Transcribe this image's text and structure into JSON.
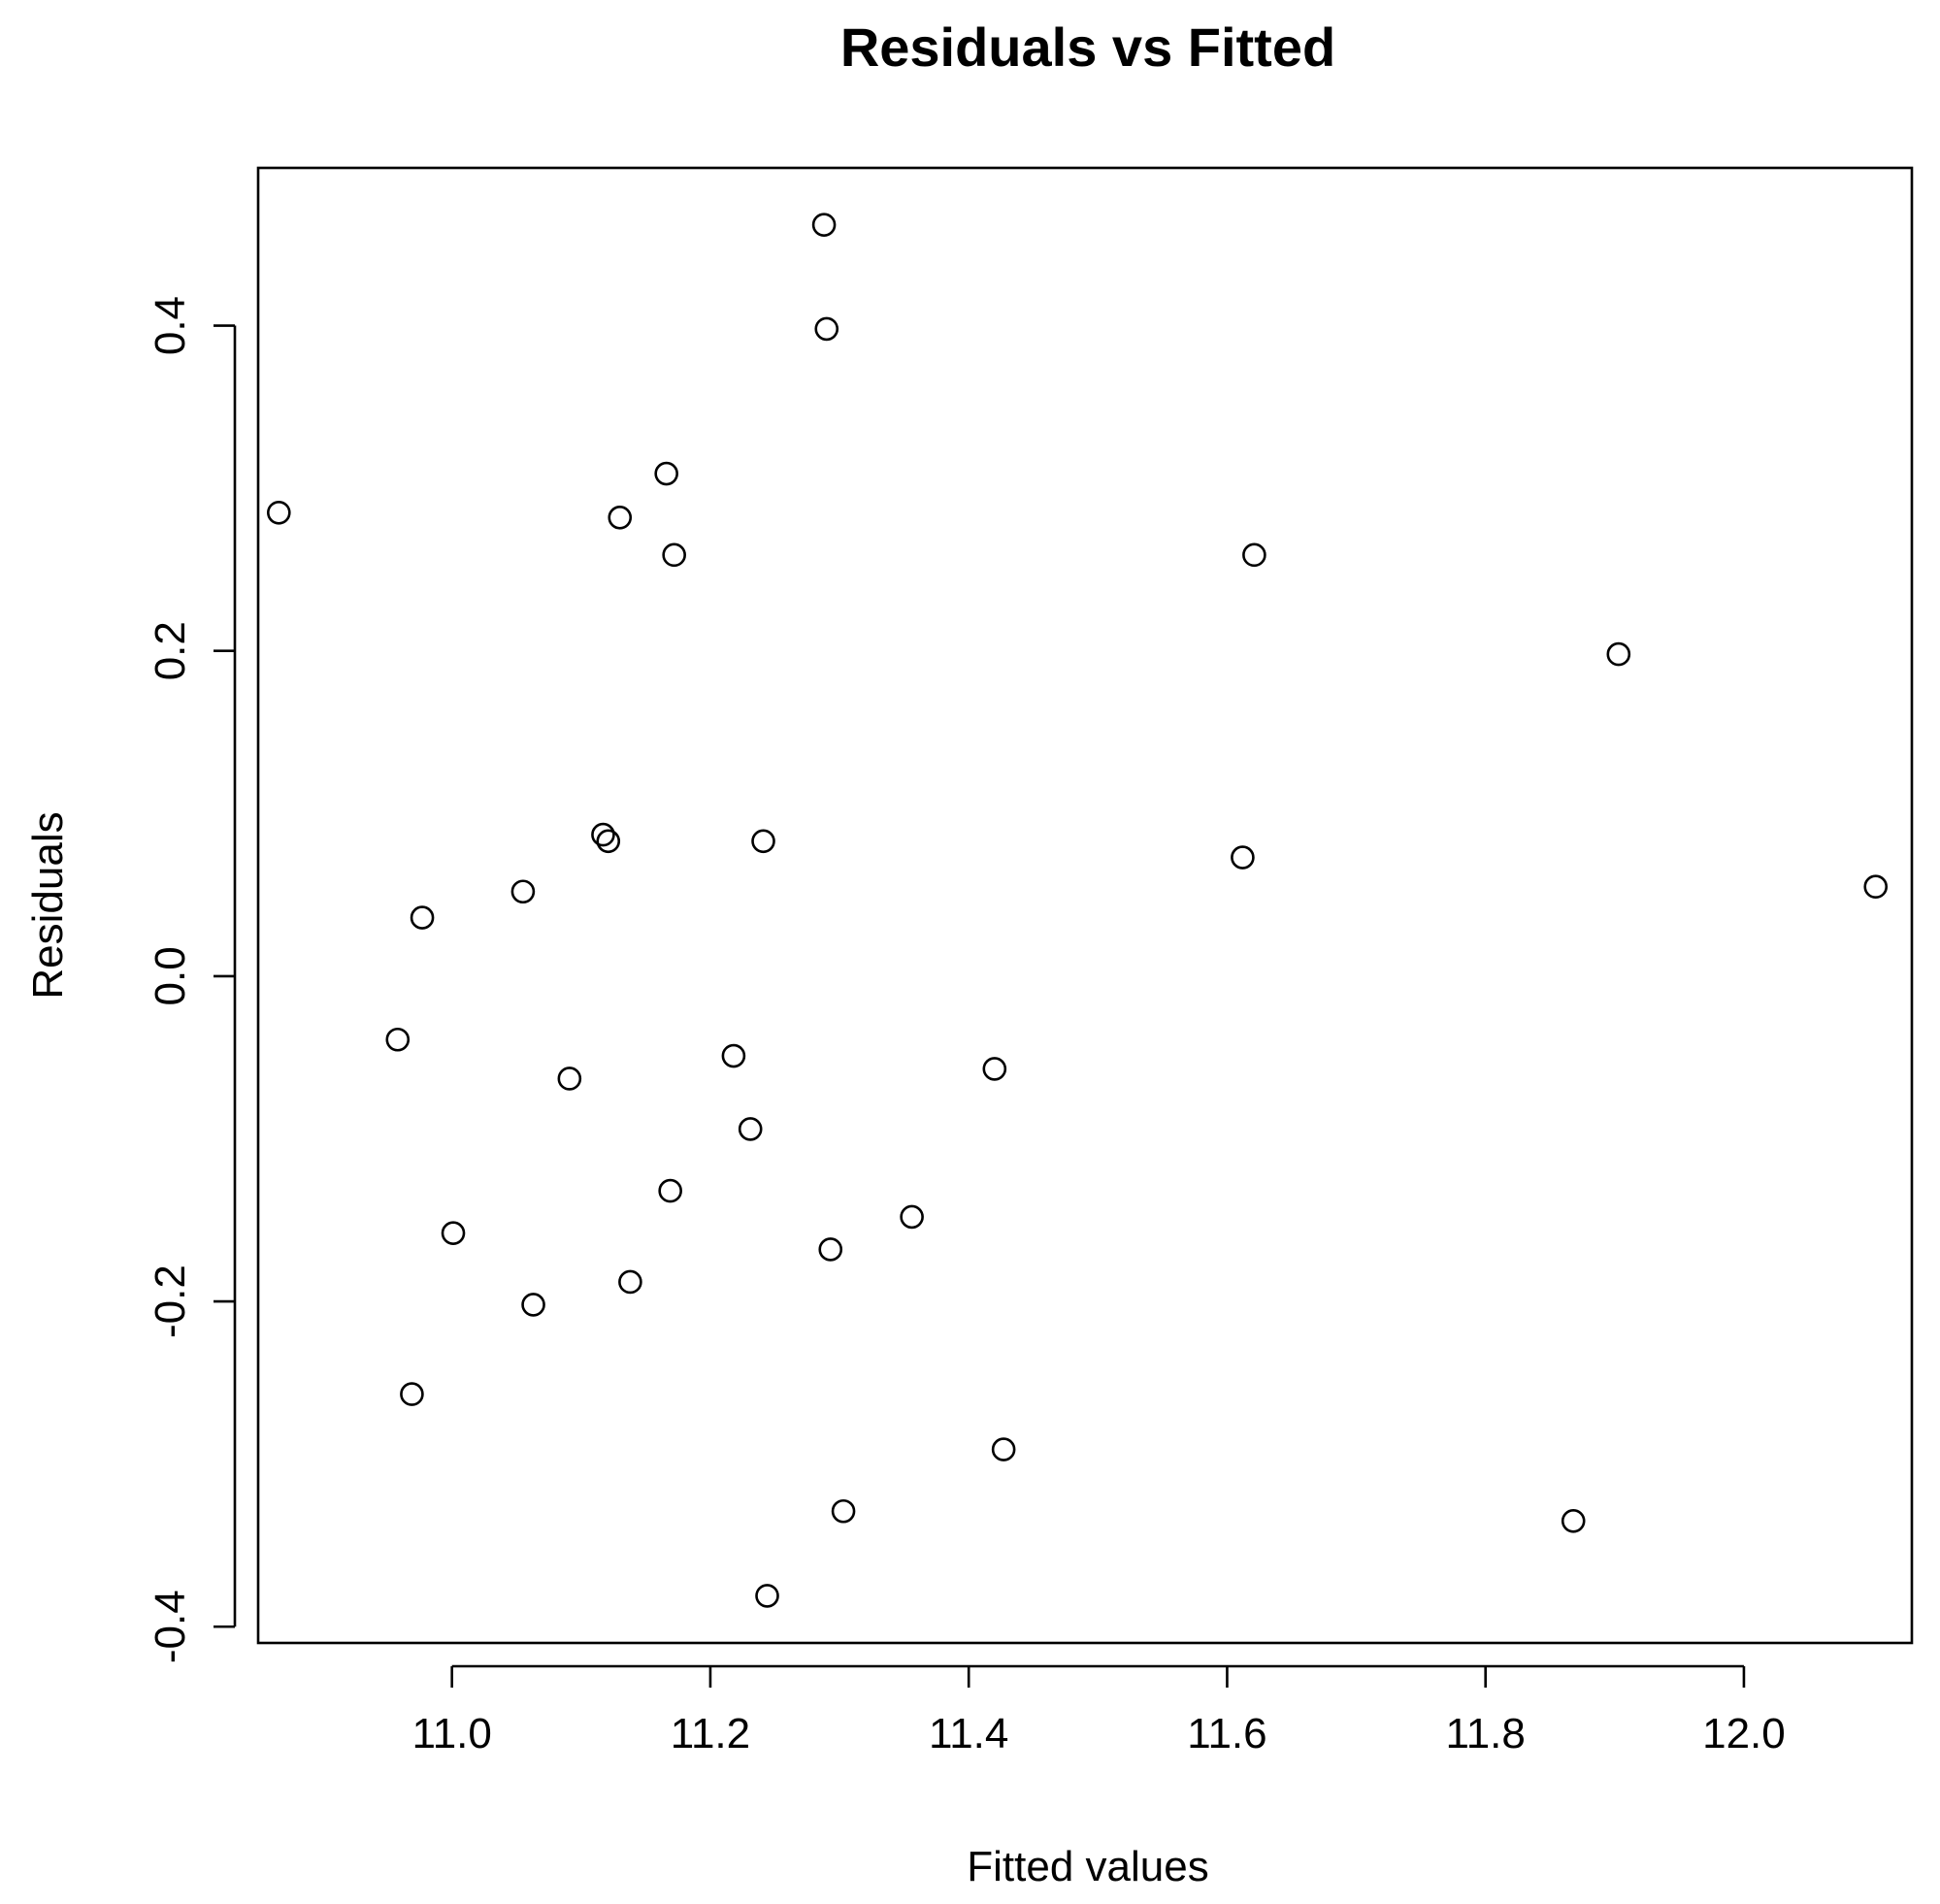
{
  "chart_data": {
    "type": "scatter",
    "title": "Residuals vs Fitted",
    "xlabel": "Fitted values",
    "ylabel": "Residuals",
    "xlim": [
      10.85,
      12.13
    ],
    "ylim": [
      -0.41,
      0.497
    ],
    "xticks": [
      "11.0",
      "11.2",
      "11.4",
      "11.6",
      "11.8",
      "12.0"
    ],
    "yticks": [
      "-0.4",
      "-0.2",
      "0.0",
      "0.2",
      "0.4"
    ],
    "grid": false,
    "marker": "open-circle",
    "colors": {
      "points": "#000000",
      "frame": "#000000",
      "background": "#ffffff"
    },
    "points": [
      {
        "x": 10.866,
        "y": 0.285
      },
      {
        "x": 10.958,
        "y": -0.039
      },
      {
        "x": 10.969,
        "y": -0.257
      },
      {
        "x": 10.977,
        "y": 0.036
      },
      {
        "x": 11.001,
        "y": -0.158
      },
      {
        "x": 11.055,
        "y": 0.052
      },
      {
        "x": 11.063,
        "y": -0.202
      },
      {
        "x": 11.091,
        "y": -0.063
      },
      {
        "x": 11.117,
        "y": 0.087
      },
      {
        "x": 11.121,
        "y": 0.083
      },
      {
        "x": 11.13,
        "y": 0.282
      },
      {
        "x": 11.138,
        "y": -0.188
      },
      {
        "x": 11.166,
        "y": 0.309
      },
      {
        "x": 11.169,
        "y": -0.132
      },
      {
        "x": 11.172,
        "y": 0.259
      },
      {
        "x": 11.218,
        "y": -0.049
      },
      {
        "x": 11.231,
        "y": -0.094
      },
      {
        "x": 11.241,
        "y": 0.083
      },
      {
        "x": 11.244,
        "y": -0.381
      },
      {
        "x": 11.288,
        "y": 0.462
      },
      {
        "x": 11.29,
        "y": 0.398
      },
      {
        "x": 11.293,
        "y": -0.168
      },
      {
        "x": 11.303,
        "y": -0.329
      },
      {
        "x": 11.356,
        "y": -0.148
      },
      {
        "x": 11.42,
        "y": -0.057
      },
      {
        "x": 11.427,
        "y": -0.291
      },
      {
        "x": 11.612,
        "y": 0.073
      },
      {
        "x": 11.621,
        "y": 0.259
      },
      {
        "x": 11.868,
        "y": -0.335
      },
      {
        "x": 11.903,
        "y": 0.198
      },
      {
        "x": 12.102,
        "y": 0.055
      }
    ]
  }
}
